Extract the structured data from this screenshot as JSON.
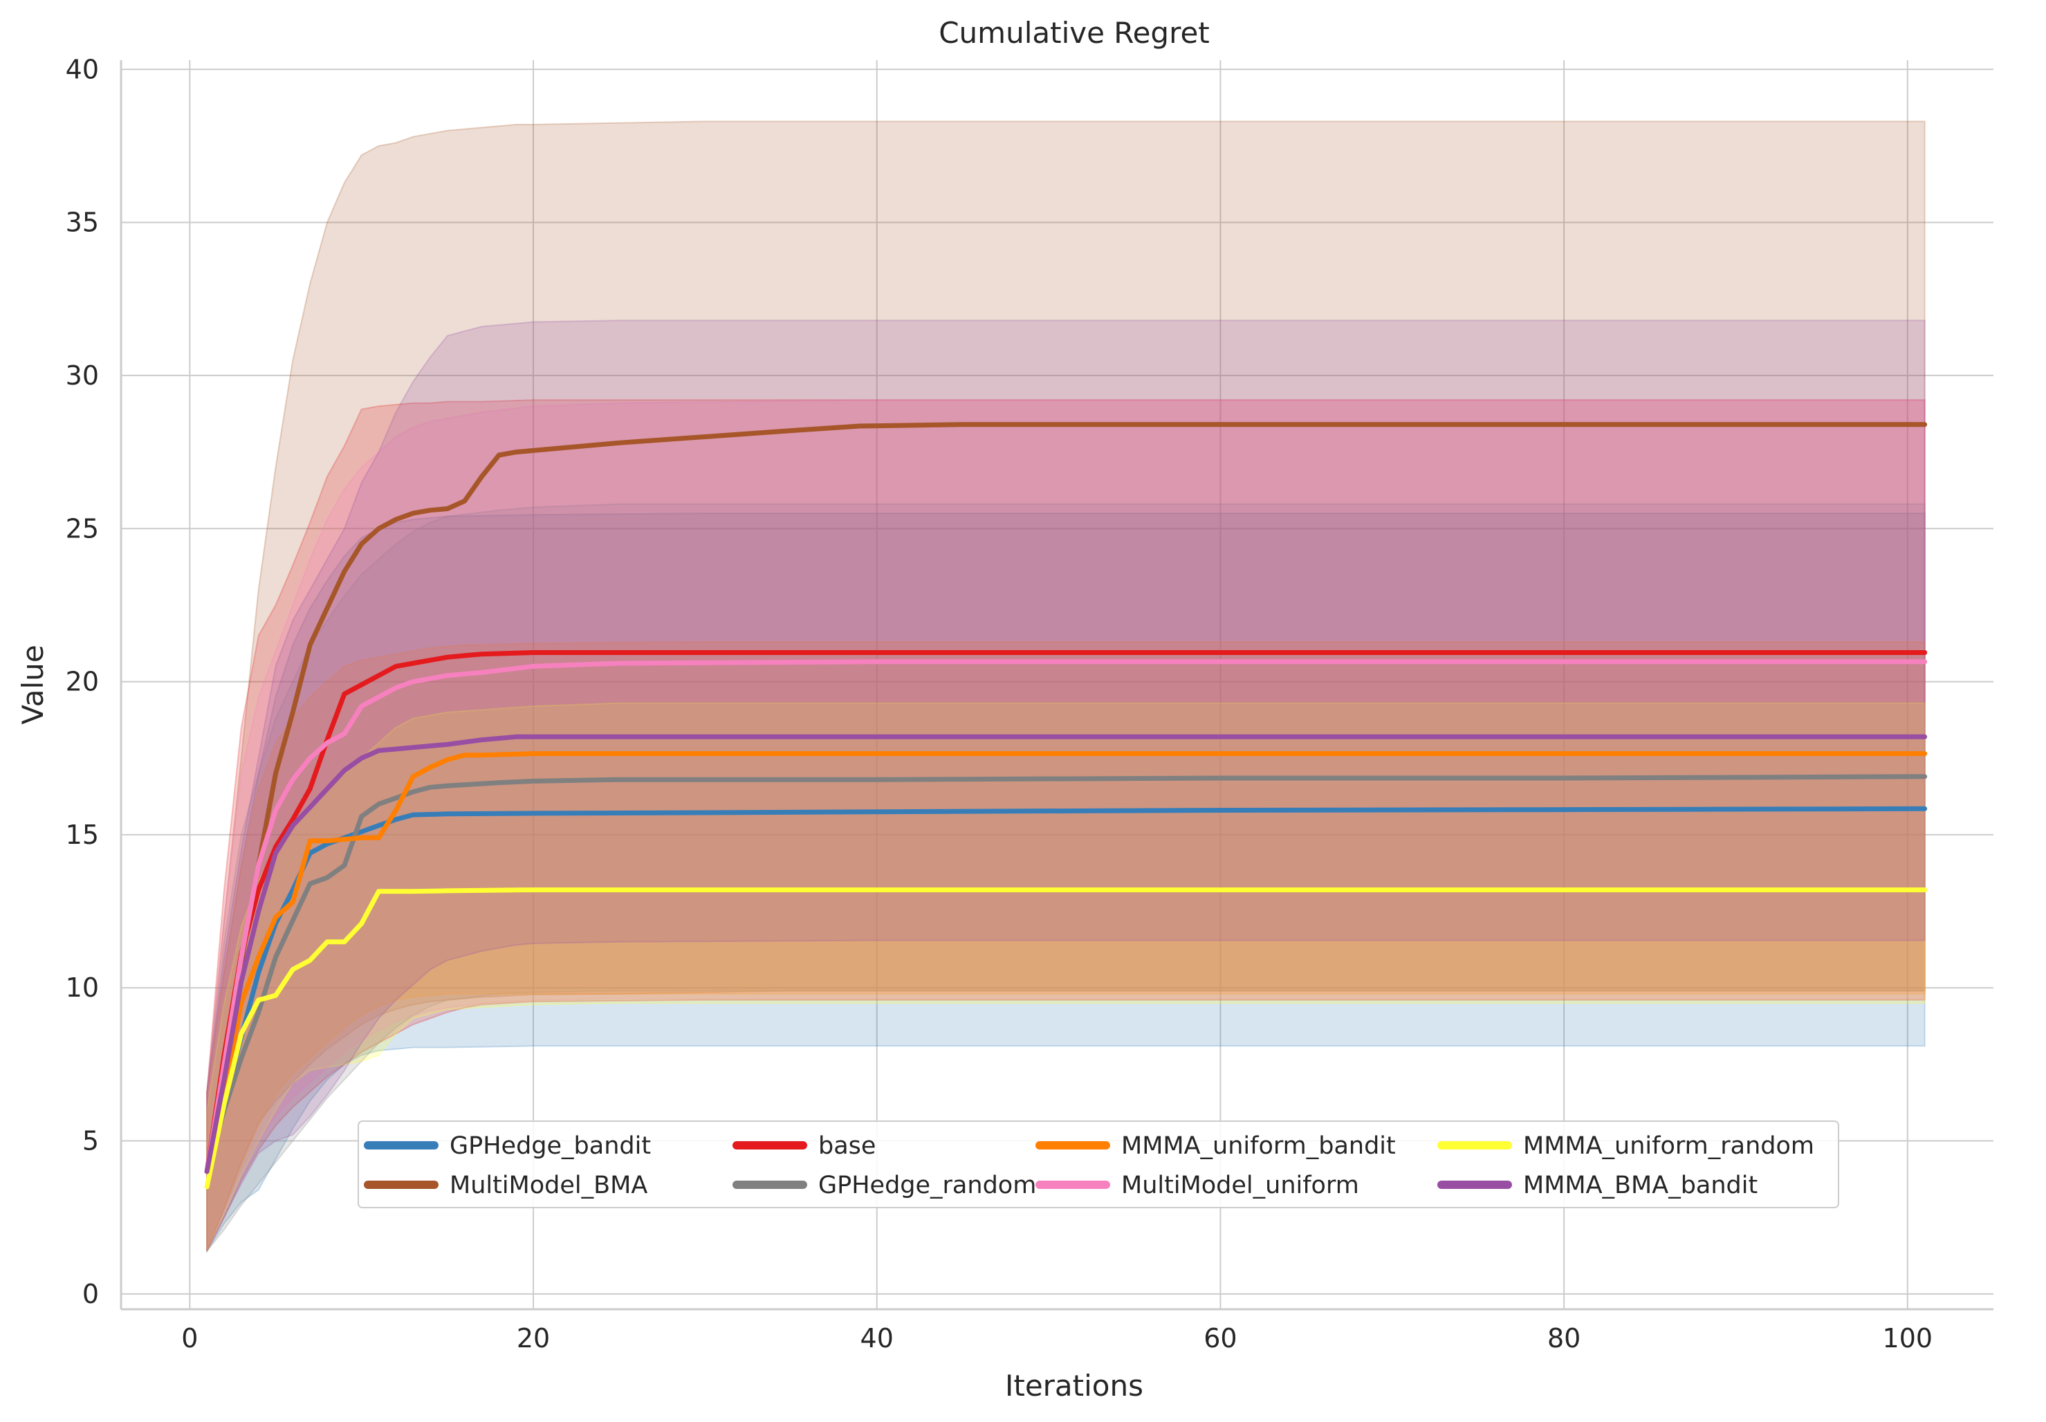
{
  "chart_data": {
    "type": "line",
    "title": "Cumulative Regret",
    "xlabel": "Iterations",
    "ylabel": "Value",
    "xlim": [
      -4,
      105
    ],
    "ylim": [
      -0.5,
      40.3
    ],
    "xticks": [
      0,
      20,
      40,
      60,
      80,
      100
    ],
    "yticks": [
      0,
      5,
      10,
      15,
      20,
      25,
      30,
      35,
      40
    ],
    "grid": true,
    "legend_position": "lower-center",
    "legend_columns": 4,
    "series": [
      {
        "name": "GPHedge_bandit",
        "color": "#377eb8",
        "x": [
          1,
          2,
          3,
          4,
          5,
          6,
          7,
          8,
          9,
          10,
          11,
          12,
          13,
          15,
          20,
          30,
          40,
          60,
          80,
          101
        ],
        "mean": [
          4.0,
          6.2,
          8.4,
          10.5,
          12.1,
          13.2,
          14.4,
          14.7,
          14.9,
          15.1,
          15.3,
          15.5,
          15.65,
          15.68,
          15.7,
          15.72,
          15.75,
          15.8,
          15.82,
          15.85
        ],
        "lower": [
          1.4,
          2.3,
          3.0,
          3.4,
          4.4,
          5.4,
          6.3,
          7.0,
          7.5,
          7.8,
          7.95,
          8.0,
          8.05,
          8.05,
          8.1,
          8.1,
          8.1,
          8.1,
          8.1,
          8.1
        ],
        "upper": [
          6.6,
          10.5,
          14.0,
          17.0,
          19.5,
          21.2,
          22.4,
          23.3,
          24.1,
          24.7,
          25.0,
          25.2,
          25.3,
          25.4,
          25.45,
          25.5,
          25.5,
          25.5,
          25.5,
          25.5
        ]
      },
      {
        "name": "MultiModel_BMA",
        "color": "#a65628",
        "x": [
          1,
          2,
          3,
          4,
          5,
          6,
          7,
          8,
          9,
          10,
          11,
          12,
          13,
          14,
          15,
          16,
          17,
          18,
          19,
          20,
          25,
          30,
          35,
          39,
          45,
          60,
          80,
          101
        ],
        "mean": [
          4.0,
          7.5,
          10.8,
          14.0,
          17.0,
          19.0,
          21.2,
          22.4,
          23.6,
          24.5,
          25.0,
          25.3,
          25.5,
          25.6,
          25.65,
          25.9,
          26.7,
          27.4,
          27.5,
          27.55,
          27.8,
          28.0,
          28.2,
          28.35,
          28.4,
          28.4,
          28.4,
          28.4
        ],
        "lower": [
          1.4,
          2.8,
          4.3,
          5.6,
          6.3,
          6.9,
          7.5,
          8.0,
          8.4,
          8.8,
          9.1,
          9.3,
          9.45,
          9.55,
          9.6,
          9.65,
          9.7,
          9.72,
          9.75,
          9.78,
          9.8,
          9.85,
          9.9,
          9.9,
          9.9,
          9.9,
          9.9,
          9.9
        ],
        "upper": [
          6.6,
          12.2,
          17.5,
          23.0,
          27.0,
          30.5,
          33.0,
          35.0,
          36.3,
          37.2,
          37.5,
          37.6,
          37.8,
          37.9,
          38.0,
          38.05,
          38.1,
          38.15,
          38.2,
          38.2,
          38.25,
          38.3,
          38.3,
          38.3,
          38.3,
          38.3,
          38.3,
          38.3
        ]
      },
      {
        "name": "base",
        "color": "#e41a1c",
        "x": [
          1,
          2,
          3,
          4,
          5,
          6,
          7,
          8,
          9,
          10,
          11,
          12,
          13,
          14,
          15,
          16,
          17,
          20,
          30,
          60,
          101
        ],
        "mean": [
          4.0,
          7.8,
          11.1,
          13.2,
          14.6,
          15.5,
          16.5,
          18.1,
          19.6,
          19.9,
          20.2,
          20.5,
          20.6,
          20.7,
          20.8,
          20.85,
          20.9,
          20.95,
          20.95,
          20.95,
          20.95
        ],
        "lower": [
          1.4,
          2.5,
          3.7,
          4.7,
          5.5,
          6.1,
          6.6,
          7.1,
          7.5,
          7.9,
          8.2,
          8.5,
          8.8,
          9.0,
          9.2,
          9.35,
          9.45,
          9.55,
          9.6,
          9.6,
          9.6
        ],
        "upper": [
          6.6,
          13.2,
          18.5,
          21.5,
          22.5,
          23.8,
          25.2,
          26.7,
          27.7,
          28.9,
          29.0,
          29.05,
          29.1,
          29.1,
          29.15,
          29.15,
          29.15,
          29.2,
          29.2,
          29.2,
          29.2
        ]
      },
      {
        "name": "GPHedge_random",
        "color": "#808080",
        "x": [
          1,
          2,
          3,
          4,
          5,
          6,
          7,
          8,
          9,
          10,
          11,
          12,
          13,
          14,
          15,
          18,
          20,
          25,
          40,
          60,
          80,
          101
        ],
        "mean": [
          4.0,
          6.0,
          7.7,
          9.2,
          11.0,
          12.2,
          13.4,
          13.6,
          14.0,
          15.6,
          16.0,
          16.2,
          16.4,
          16.55,
          16.6,
          16.7,
          16.75,
          16.8,
          16.8,
          16.85,
          16.85,
          16.9
        ],
        "lower": [
          1.4,
          2.1,
          2.9,
          3.6,
          4.3,
          5.0,
          5.7,
          6.4,
          7.0,
          7.6,
          8.2,
          8.7,
          9.1,
          9.4,
          9.6,
          9.8,
          9.85,
          9.9,
          9.9,
          9.9,
          9.9,
          9.9
        ],
        "upper": [
          6.6,
          11.5,
          15.0,
          17.0,
          18.8,
          20.0,
          21.2,
          22.0,
          22.8,
          23.5,
          24.0,
          24.5,
          24.9,
          25.2,
          25.4,
          25.6,
          25.7,
          25.8,
          25.8,
          25.8,
          25.8,
          25.8
        ]
      },
      {
        "name": "MMMA_uniform_bandit",
        "color": "#ff7f00",
        "x": [
          1,
          2,
          3,
          4,
          5,
          6,
          7,
          8,
          9,
          10,
          11,
          12,
          13,
          14,
          15,
          16,
          17,
          20,
          30,
          60,
          101
        ],
        "mean": [
          4.0,
          6.5,
          9.5,
          11.0,
          12.3,
          12.8,
          14.8,
          14.8,
          14.85,
          14.9,
          14.9,
          15.8,
          16.9,
          17.2,
          17.45,
          17.6,
          17.6,
          17.65,
          17.65,
          17.65,
          17.65
        ],
        "lower": [
          1.4,
          2.8,
          4.2,
          5.5,
          6.5,
          7.2,
          7.7,
          8.2,
          8.7,
          9.1,
          9.4,
          9.6,
          9.7,
          9.75,
          9.8,
          9.8,
          9.8,
          9.8,
          9.8,
          9.8,
          9.8
        ],
        "upper": [
          6.6,
          10.5,
          14.0,
          16.5,
          18.0,
          18.8,
          19.5,
          20.0,
          20.5,
          20.7,
          20.8,
          20.9,
          21.0,
          21.1,
          21.15,
          21.2,
          21.2,
          21.25,
          21.3,
          21.3,
          21.3
        ]
      },
      {
        "name": "MultiModel_uniform",
        "color": "#f781bf",
        "x": [
          1,
          2,
          3,
          4,
          5,
          6,
          7,
          8,
          9,
          10,
          11,
          12,
          13,
          14,
          15,
          17,
          20,
          25,
          40,
          60,
          101
        ],
        "mean": [
          4.0,
          7.5,
          11.0,
          14.0,
          15.8,
          16.8,
          17.5,
          18.0,
          18.3,
          19.2,
          19.5,
          19.8,
          20.0,
          20.1,
          20.2,
          20.3,
          20.5,
          20.6,
          20.65,
          20.65,
          20.65
        ],
        "lower": [
          1.4,
          2.7,
          4.0,
          5.0,
          5.8,
          6.4,
          6.9,
          7.4,
          7.9,
          8.3,
          8.6,
          8.9,
          9.1,
          9.25,
          9.35,
          9.5,
          9.6,
          9.65,
          9.65,
          9.65,
          9.65
        ],
        "upper": [
          6.6,
          12.3,
          17.0,
          19.5,
          21.0,
          22.5,
          24.0,
          25.3,
          26.3,
          27.0,
          27.5,
          28.0,
          28.3,
          28.5,
          28.6,
          28.8,
          29.0,
          29.1,
          29.2,
          29.2,
          29.2
        ]
      },
      {
        "name": "MMMA_uniform_random",
        "color": "#ffff33",
        "x": [
          1,
          2,
          3,
          4,
          5,
          6,
          7,
          8,
          9,
          10,
          11,
          12,
          13,
          15,
          20,
          25,
          40,
          60,
          80,
          101
        ],
        "mean": [
          3.5,
          6.2,
          8.5,
          9.6,
          9.75,
          10.6,
          10.9,
          11.5,
          11.5,
          12.1,
          13.15,
          13.15,
          13.15,
          13.17,
          13.2,
          13.2,
          13.2,
          13.2,
          13.2,
          13.2
        ],
        "lower": [
          1.4,
          2.6,
          3.9,
          5.0,
          6.0,
          6.9,
          7.3,
          7.4,
          7.5,
          7.6,
          7.8,
          8.5,
          9.0,
          9.3,
          9.45,
          9.5,
          9.5,
          9.5,
          9.5,
          9.5
        ],
        "upper": [
          6.0,
          9.5,
          12.0,
          13.5,
          14.5,
          15.3,
          16.0,
          16.5,
          17.0,
          17.5,
          18.0,
          18.5,
          18.8,
          19.0,
          19.2,
          19.3,
          19.3,
          19.3,
          19.3,
          19.3
        ]
      },
      {
        "name": "MMMA_BMA_bandit",
        "color": "#984ea3",
        "x": [
          1,
          2,
          3,
          4,
          5,
          6,
          7,
          8,
          9,
          10,
          11,
          12,
          13,
          14,
          15,
          17,
          19,
          20,
          25,
          40,
          60,
          101
        ],
        "mean": [
          4.0,
          7.0,
          10.2,
          12.5,
          14.4,
          15.3,
          15.9,
          16.5,
          17.1,
          17.5,
          17.75,
          17.8,
          17.85,
          17.9,
          17.95,
          18.1,
          18.2,
          18.2,
          18.2,
          18.2,
          18.2,
          18.2
        ],
        "lower": [
          1.4,
          2.5,
          3.6,
          4.6,
          5.0,
          5.2,
          5.8,
          6.5,
          7.3,
          8.2,
          9.0,
          9.6,
          10.1,
          10.6,
          10.9,
          11.2,
          11.4,
          11.45,
          11.5,
          11.55,
          11.55,
          11.55
        ],
        "upper": [
          6.6,
          11.0,
          14.5,
          17.5,
          20.5,
          22.0,
          23.0,
          24.0,
          25.0,
          26.5,
          27.5,
          28.8,
          29.8,
          30.6,
          31.3,
          31.6,
          31.7,
          31.75,
          31.8,
          31.8,
          31.8,
          31.8
        ]
      }
    ]
  }
}
